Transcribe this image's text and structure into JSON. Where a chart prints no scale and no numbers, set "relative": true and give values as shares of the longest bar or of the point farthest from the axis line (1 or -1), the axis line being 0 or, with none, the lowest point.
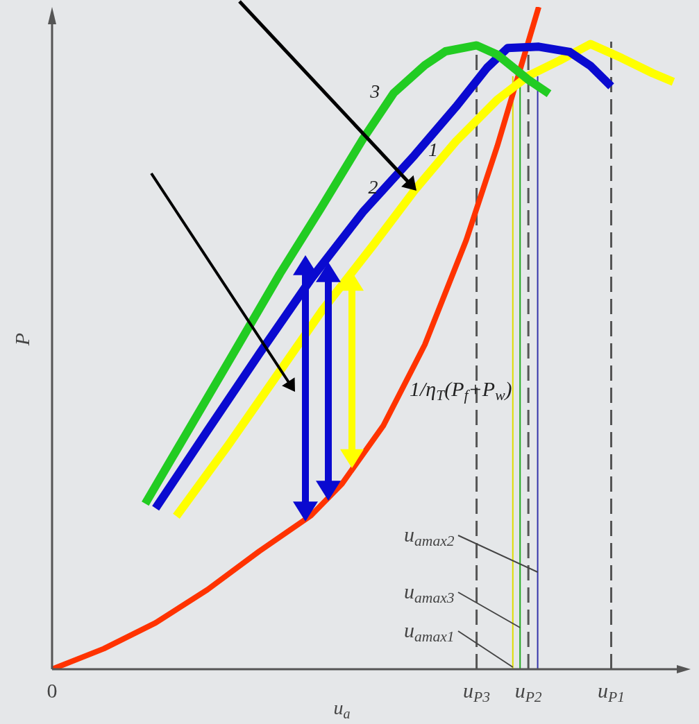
{
  "chart_data": {
    "type": "line",
    "relative": true,
    "xlabel": "u$_{a}$",
    "ylabel": "P",
    "categories": [
      "0",
      null,
      null,
      null,
      null,
      null,
      null,
      null,
      null,
      null,
      null,
      null,
      null,
      null,
      null,
      null,
      null,
      null,
      null,
      null,
      null,
      null,
      null,
      null,
      null,
      null,
      null,
      null,
      null,
      null,
      null,
      null,
      null,
      null,
      null,
      null,
      null,
      null,
      null,
      null,
      null,
      "u$_{P3}$",
      null,
      null,
      null,
      null,
      "u$_{P2}$",
      null,
      null,
      null,
      null,
      null,
      null,
      null,
      "u$_{P1}$",
      null,
      null,
      null,
      null,
      null,
      null
    ],
    "legend": false,
    "marker": "none",
    "annotations": [
      "u$_{amax2}$",
      "u$_{amax3}$",
      "u$_{amax1}$"
    ],
    "series": [
      {
        "name": "3",
        "color": "#22cc22",
        "values": [
          null,
          null,
          null,
          null,
          null,
          null,
          null,
          null,
          null,
          0.25,
          null,
          null,
          0.33,
          null,
          null,
          null,
          null,
          0.463,
          null,
          null,
          null,
          null,
          0.597,
          null,
          null,
          null,
          0.697,
          null,
          null,
          null,
          0.8,
          null,
          null,
          0.87,
          null,
          null,
          0.912,
          null,
          0.933,
          null,
          null,
          0.942,
          null,
          0.928,
          null,
          null,
          0.89,
          null,
          0.869,
          null,
          null,
          null,
          null,
          null,
          null,
          null,
          null,
          null,
          null,
          null,
          null
        ]
      },
      {
        "name": "2",
        "color": "#0a0ad0",
        "values": [
          null,
          null,
          null,
          null,
          null,
          null,
          null,
          null,
          null,
          null,
          0.243,
          null,
          null,
          null,
          null,
          0.36,
          null,
          null,
          null,
          null,
          0.476,
          null,
          null,
          null,
          null,
          0.589,
          null,
          null,
          null,
          null,
          0.69,
          null,
          null,
          null,
          null,
          0.776,
          null,
          null,
          null,
          0.849,
          null,
          null,
          0.908,
          null,
          0.938,
          null,
          null,
          0.94,
          null,
          null,
          0.932,
          null,
          0.911,
          null,
          0.88,
          null,
          null,
          null,
          null,
          null,
          null
        ]
      },
      {
        "name": "1",
        "color": "#ffff00",
        "values": [
          null,
          null,
          null,
          null,
          null,
          null,
          null,
          null,
          null,
          null,
          null,
          null,
          0.231,
          null,
          null,
          null,
          null,
          0.338,
          null,
          null,
          null,
          null,
          0.45,
          null,
          null,
          null,
          0.54,
          null,
          null,
          null,
          null,
          0.64,
          null,
          null,
          null,
          0.723,
          null,
          null,
          null,
          0.797,
          null,
          null,
          null,
          0.86,
          null,
          null,
          0.896,
          null,
          null,
          0.919,
          null,
          null,
          0.944,
          null,
          null,
          0.923,
          null,
          null,
          0.9,
          null,
          0.887
        ]
      },
      {
        "name": "1/η$_{T}$(P$_{f}$+P$_{w}$)",
        "color": "#ff3300",
        "values": [
          0,
          null,
          null,
          null,
          null,
          0.031,
          null,
          null,
          null,
          null,
          0.07,
          null,
          null,
          null,
          null,
          0.12,
          null,
          null,
          null,
          null,
          0.178,
          null,
          null,
          null,
          null,
          0.232,
          null,
          null,
          0.28,
          null,
          null,
          null,
          0.368,
          null,
          null,
          null,
          0.49,
          null,
          null,
          null,
          0.648,
          null,
          null,
          0.79,
          null,
          0.895,
          null,
          1,
          null,
          null,
          null,
          null,
          null,
          null,
          null,
          null,
          null,
          null,
          null,
          null,
          null
        ]
      }
    ],
    "ref_lines": [
      {
        "axis": "x",
        "value": "u$_{P3}$",
        "color": "#555555",
        "line_style": "dashed"
      },
      {
        "axis": "x",
        "value": "u$_{P2}$",
        "color": "#555555",
        "line_style": "dashed"
      },
      {
        "axis": "x",
        "value": "u$_{P1}$",
        "color": "#555555",
        "line_style": "dashed"
      }
    ]
  }
}
